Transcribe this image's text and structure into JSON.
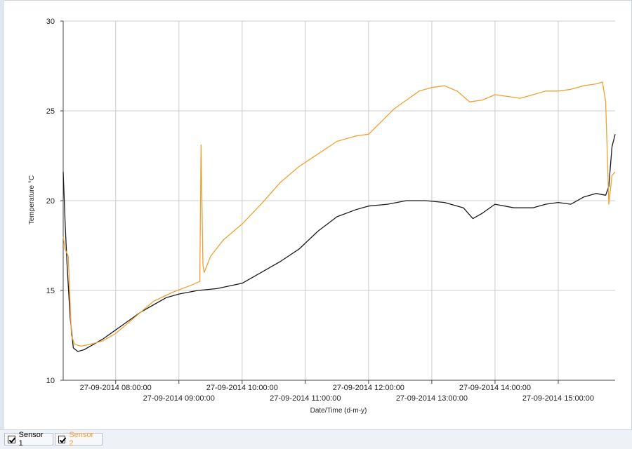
{
  "colors": {
    "sensor1": "#1a1a1a",
    "sensor2": "#f0a030",
    "grid": "#cccccc",
    "axis": "#444444"
  },
  "legend": {
    "items": [
      {
        "label": "Sensor 1",
        "checked": true
      },
      {
        "label": "Sensor 2",
        "checked": true
      }
    ]
  },
  "chart_data": {
    "type": "line",
    "xlabel": "Date/Time (d-m-y)",
    "ylabel": "Temperature °C",
    "ylim": [
      10,
      30
    ],
    "yticks": [
      10,
      15,
      20,
      25,
      30
    ],
    "xlim_hours": [
      7.17,
      15.9
    ],
    "grid": true,
    "legend_position": "bottom-left",
    "xticks": [
      {
        "label": "27-09-2014 08:00:00",
        "hour": 8
      },
      {
        "label": "27-09-2014 09:00:00",
        "hour": 9
      },
      {
        "label": "27-09-2014 10:00:00",
        "hour": 10
      },
      {
        "label": "27-09-2014 11:00:00",
        "hour": 11
      },
      {
        "label": "27-09-2014 12:00:00",
        "hour": 12
      },
      {
        "label": "27-09-2014 13:00:00",
        "hour": 13
      },
      {
        "label": "27-09-2014 14:00:00",
        "hour": 14
      },
      {
        "label": "27-09-2014 15:00:00",
        "hour": 15
      }
    ],
    "series": [
      {
        "name": "Sensor 1",
        "color": "#1a1a1a",
        "x": [
          7.17,
          7.2,
          7.23,
          7.28,
          7.33,
          7.4,
          7.5,
          7.6,
          7.8,
          8.0,
          8.2,
          8.4,
          8.6,
          8.8,
          9.0,
          9.3,
          9.6,
          10.0,
          10.3,
          10.6,
          10.9,
          11.2,
          11.5,
          11.8,
          12.0,
          12.3,
          12.6,
          12.9,
          13.2,
          13.5,
          13.65,
          13.8,
          14.0,
          14.3,
          14.6,
          14.8,
          15.0,
          15.2,
          15.4,
          15.6,
          15.75,
          15.8,
          15.85,
          15.9
        ],
        "y": [
          21.6,
          18.8,
          16.5,
          13.5,
          11.8,
          11.6,
          11.7,
          11.9,
          12.3,
          12.8,
          13.3,
          13.8,
          14.2,
          14.6,
          14.8,
          15.0,
          15.1,
          15.4,
          16.0,
          16.6,
          17.3,
          18.3,
          19.1,
          19.5,
          19.7,
          19.8,
          20.0,
          20.0,
          19.9,
          19.6,
          19.0,
          19.3,
          19.8,
          19.6,
          19.6,
          19.8,
          19.9,
          19.8,
          20.2,
          20.4,
          20.3,
          20.8,
          23.0,
          23.7
        ]
      },
      {
        "name": "Sensor 2",
        "color": "#f0a030",
        "x": [
          7.17,
          7.2,
          7.25,
          7.3,
          7.35,
          7.45,
          7.6,
          7.8,
          8.0,
          8.3,
          8.6,
          8.9,
          9.2,
          9.33,
          9.35,
          9.38,
          9.4,
          9.5,
          9.7,
          10.0,
          10.3,
          10.6,
          10.9,
          11.2,
          11.5,
          11.8,
          12.0,
          12.2,
          12.4,
          12.6,
          12.8,
          13.0,
          13.2,
          13.4,
          13.6,
          13.8,
          14.0,
          14.2,
          14.4,
          14.6,
          14.8,
          15.0,
          15.2,
          15.4,
          15.6,
          15.7,
          15.75,
          15.8,
          15.85,
          15.9
        ],
        "y": [
          18.0,
          17.3,
          16.9,
          12.5,
          12.0,
          11.9,
          12.0,
          12.2,
          12.6,
          13.5,
          14.4,
          14.9,
          15.3,
          15.5,
          23.1,
          16.4,
          16.0,
          16.9,
          17.8,
          18.7,
          19.8,
          21.0,
          21.9,
          22.6,
          23.3,
          23.6,
          23.7,
          24.4,
          25.1,
          25.6,
          26.1,
          26.3,
          26.4,
          26.1,
          25.5,
          25.6,
          25.9,
          25.8,
          25.7,
          25.9,
          26.1,
          26.1,
          26.2,
          26.4,
          26.5,
          26.6,
          25.5,
          19.8,
          21.4,
          21.6
        ]
      }
    ]
  }
}
